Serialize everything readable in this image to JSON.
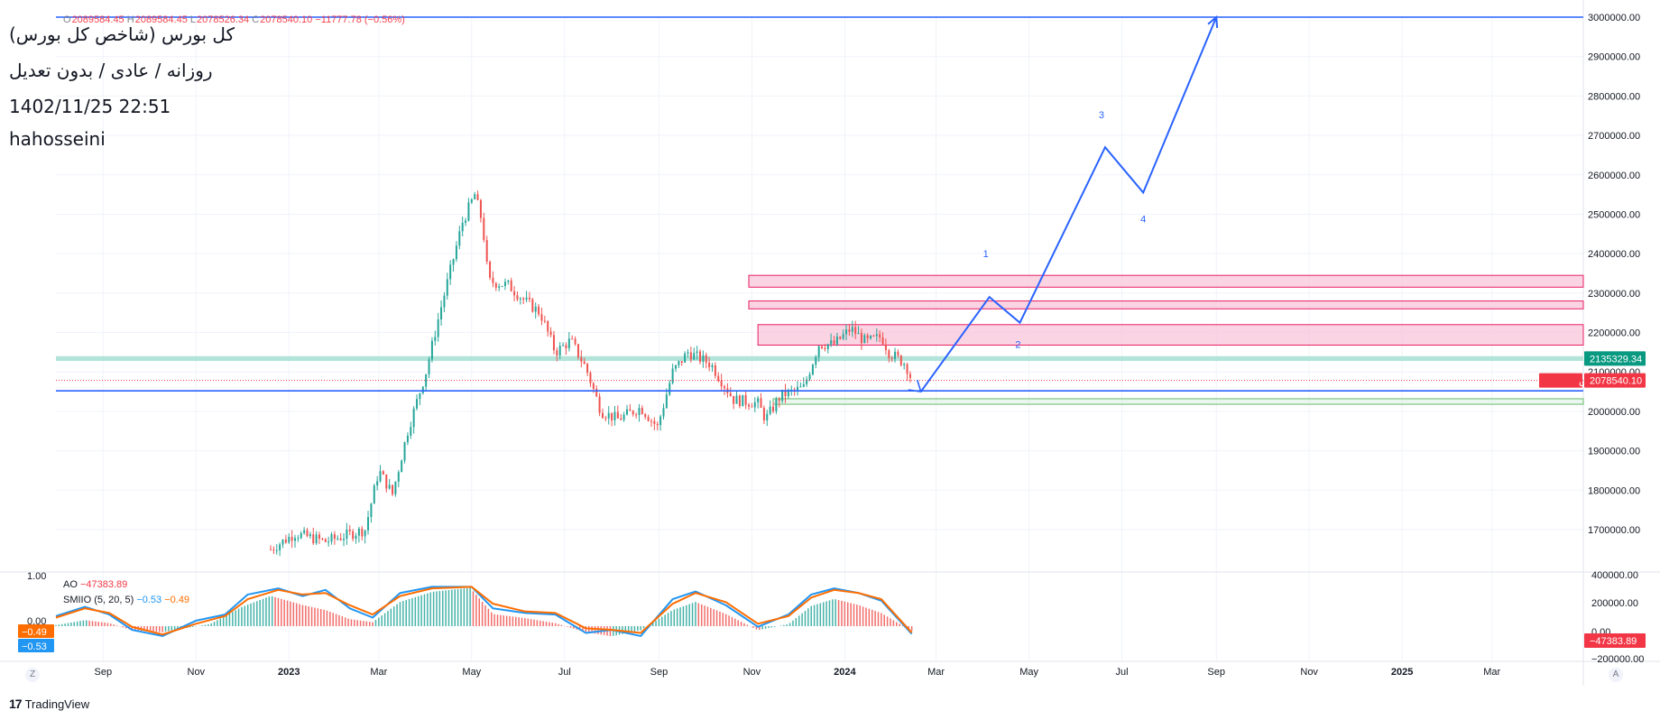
{
  "header": {
    "ticker_title": "کل بورس (شاخص کل بورس)",
    "timeframe": "روزانه / عادی / بدون تعدیل",
    "datetime": "1402/11/25 22:51",
    "author": "hahosseini"
  },
  "ohlc": {
    "open_label": "O",
    "open": "2089584.45",
    "high_label": "H",
    "high": "2089584.45",
    "low_label": "L",
    "low": "2078526.34",
    "close_label": "C",
    "close": "2078540.10",
    "change": "−11777.78 (−0.56%)"
  },
  "colors": {
    "up": "#26a69a",
    "down": "#ef5350",
    "projection": "#2962ff",
    "zone_fill": "#f8c5d8",
    "zone_border": "#e91e63",
    "support_band": "#a5dfd3",
    "ao_up": "#26a69a",
    "ao_down": "#ef5350",
    "smi_blue": "#2196f3",
    "smi_orange": "#ff6d00"
  },
  "price_axis": {
    "ticks": [
      "3000000.00",
      "2900000.00",
      "2800000.00",
      "2700000.00",
      "2600000.00",
      "2500000.00",
      "2400000.00",
      "2300000.00",
      "2200000.00",
      "2100000.00",
      "2000000.00",
      "1900000.00",
      "1800000.00",
      "1700000.00"
    ],
    "badge_support": "2135329.34",
    "badge_symbol": "کل بورس",
    "badge_last": "2078540.10"
  },
  "time_axis": {
    "labels": [
      "Sep",
      "Nov",
      "2023",
      "Mar",
      "May",
      "Jul",
      "Sep",
      "Nov",
      "2024",
      "Mar",
      "May",
      "Jul",
      "Sep",
      "Nov",
      "2025",
      "Mar"
    ]
  },
  "indicator": {
    "ao_label": "AO",
    "ao_value": "−47383.89",
    "smi_label": "SMIIO (5, 20, 5)",
    "smi_blue_value": "−0.53",
    "smi_orange_value": "−0.49",
    "left_scale_top": "1.00",
    "left_scale_zero": "0.00",
    "left_badge_orange": "−0.49",
    "left_badge_blue": "−0.53",
    "right_ticks": [
      "400000.00",
      "200000.00",
      "0.00",
      "−200000.00"
    ],
    "right_badge": "−47383.89"
  },
  "footer": {
    "brand": "TradingView",
    "zoom_left": "Z",
    "auto_right": "A"
  },
  "chart_data": {
    "type": "candlestick",
    "title": "کل بورس (شاخص کل بورس)",
    "y_unit": "index points",
    "ylim": [
      1650000,
      3000000
    ],
    "x_range": [
      "2022-08-01",
      "2025-04-30"
    ],
    "price_path": [
      [
        "2022-12-20",
        1650000
      ],
      [
        "2023-01-05",
        1690000
      ],
      [
        "2023-01-25",
        1670000
      ],
      [
        "2023-02-20",
        1700000
      ],
      [
        "2023-03-01",
        1850000
      ],
      [
        "2023-03-10",
        1790000
      ],
      [
        "2023-03-20",
        1950000
      ],
      [
        "2023-04-01",
        2100000
      ],
      [
        "2023-04-10",
        2250000
      ],
      [
        "2023-04-25",
        2480000
      ],
      [
        "2023-05-03",
        2550000
      ],
      [
        "2023-05-08",
        2480000
      ],
      [
        "2023-05-12",
        2330000
      ],
      [
        "2023-05-25",
        2320000
      ],
      [
        "2023-06-05",
        2280000
      ],
      [
        "2023-06-15",
        2250000
      ],
      [
        "2023-06-25",
        2150000
      ],
      [
        "2023-07-05",
        2180000
      ],
      [
        "2023-07-15",
        2110000
      ],
      [
        "2023-07-25",
        2000000
      ],
      [
        "2023-08-05",
        1980000
      ],
      [
        "2023-08-20",
        2010000
      ],
      [
        "2023-08-31",
        1960000
      ],
      [
        "2023-09-10",
        2100000
      ],
      [
        "2023-09-20",
        2150000
      ],
      [
        "2023-10-05",
        2120000
      ],
      [
        "2023-10-20",
        2030000
      ],
      [
        "2023-11-05",
        2020000
      ],
      [
        "2023-11-10",
        1980000
      ],
      [
        "2023-11-20",
        2040000
      ],
      [
        "2023-12-05",
        2060000
      ],
      [
        "2023-12-15",
        2170000
      ],
      [
        "2023-12-25",
        2170000
      ],
      [
        "2024-01-05",
        2210000
      ],
      [
        "2024-01-15",
        2175000
      ],
      [
        "2024-01-25",
        2190000
      ],
      [
        "2024-01-30",
        2150000
      ],
      [
        "2024-02-10",
        2120000
      ],
      [
        "2024-02-14",
        2078540
      ]
    ],
    "projection_wave": [
      {
        "date": "2024-02-20",
        "value": 2050000,
        "label": ""
      },
      {
        "date": "2024-04-05",
        "value": 2290000,
        "label": "1"
      },
      {
        "date": "2024-04-25",
        "value": 2225000,
        "label": "2"
      },
      {
        "date": "2024-06-20",
        "value": 2670000,
        "label": "3"
      },
      {
        "date": "2024-07-15",
        "value": 2555000,
        "label": "4"
      },
      {
        "date": "2024-09-01",
        "value": 3000000,
        "label": ""
      }
    ],
    "horizontal_lines": [
      {
        "name": "resistance",
        "value": 3000000
      },
      {
        "name": "support",
        "value": 2052000
      },
      {
        "name": "last-price",
        "value": 2078540
      }
    ],
    "support_band": {
      "from": 2128000,
      "to": 2140000
    },
    "green_zone": {
      "from": 2018000,
      "to": 2032000,
      "start": "2023-11-15"
    },
    "resistance_zones": [
      {
        "from": 2315000,
        "to": 2345000,
        "start": "2023-10-30"
      },
      {
        "from": 2260000,
        "to": 2280000,
        "start": "2023-10-30"
      },
      {
        "from": 2168000,
        "to": 2220000,
        "start": "2023-11-05"
      }
    ],
    "ao_ylim": [
      -250000,
      420000
    ],
    "ao_path": [
      [
        "2022-08-01",
        10000
      ],
      [
        "2022-08-20",
        60000
      ],
      [
        "2022-09-05",
        30000
      ],
      [
        "2022-09-20",
        -40000
      ],
      [
        "2022-10-10",
        -60000
      ],
      [
        "2022-10-25",
        -20000
      ],
      [
        "2022-11-10",
        20000
      ],
      [
        "2022-12-01",
        190000
      ],
      [
        "2022-12-20",
        300000
      ],
      [
        "2023-01-10",
        210000
      ],
      [
        "2023-01-25",
        160000
      ],
      [
        "2023-02-10",
        70000
      ],
      [
        "2023-02-25",
        40000
      ],
      [
        "2023-03-15",
        240000
      ],
      [
        "2023-04-05",
        340000
      ],
      [
        "2023-04-30",
        380000
      ],
      [
        "2023-05-15",
        120000
      ],
      [
        "2023-06-05",
        80000
      ],
      [
        "2023-06-25",
        30000
      ],
      [
        "2023-07-15",
        -60000
      ],
      [
        "2023-08-01",
        -100000
      ],
      [
        "2023-08-20",
        -40000
      ],
      [
        "2023-09-10",
        160000
      ],
      [
        "2023-09-25",
        240000
      ],
      [
        "2023-10-15",
        120000
      ],
      [
        "2023-11-05",
        -40000
      ],
      [
        "2023-11-25",
        20000
      ],
      [
        "2023-12-10",
        200000
      ],
      [
        "2023-12-25",
        270000
      ],
      [
        "2024-01-10",
        210000
      ],
      [
        "2024-01-25",
        130000
      ],
      [
        "2024-02-14",
        -47383
      ]
    ],
    "smi_ylim": [
      -1.1,
      1.1
    ],
    "smi_blue": [
      [
        "2022-08-01",
        0.05
      ],
      [
        "2022-08-20",
        0.35
      ],
      [
        "2022-09-05",
        0.1
      ],
      [
        "2022-09-20",
        -0.4
      ],
      [
        "2022-10-10",
        -0.6
      ],
      [
        "2022-11-01",
        -0.1
      ],
      [
        "2022-11-20",
        0.1
      ],
      [
        "2022-12-05",
        0.75
      ],
      [
        "2022-12-25",
        0.95
      ],
      [
        "2023-01-10",
        0.7
      ],
      [
        "2023-01-25",
        0.9
      ],
      [
        "2023-02-10",
        0.3
      ],
      [
        "2023-02-25",
        0.0
      ],
      [
        "2023-03-15",
        0.8
      ],
      [
        "2023-04-05",
        1.0
      ],
      [
        "2023-05-01",
        1.0
      ],
      [
        "2023-05-15",
        0.3
      ],
      [
        "2023-06-05",
        0.15
      ],
      [
        "2023-06-25",
        0.1
      ],
      [
        "2023-07-15",
        -0.5
      ],
      [
        "2023-08-01",
        -0.4
      ],
      [
        "2023-08-20",
        -0.6
      ],
      [
        "2023-09-10",
        0.6
      ],
      [
        "2023-09-25",
        0.85
      ],
      [
        "2023-10-15",
        0.4
      ],
      [
        "2023-11-05",
        -0.3
      ],
      [
        "2023-11-25",
        0.1
      ],
      [
        "2023-12-10",
        0.75
      ],
      [
        "2023-12-25",
        0.95
      ],
      [
        "2024-01-10",
        0.8
      ],
      [
        "2024-01-25",
        0.55
      ],
      [
        "2024-02-14",
        -0.53
      ]
    ],
    "smi_orange": [
      [
        "2022-08-01",
        0.0
      ],
      [
        "2022-08-20",
        0.3
      ],
      [
        "2022-09-05",
        0.15
      ],
      [
        "2022-09-20",
        -0.3
      ],
      [
        "2022-10-10",
        -0.55
      ],
      [
        "2022-11-01",
        -0.2
      ],
      [
        "2022-11-20",
        0.05
      ],
      [
        "2022-12-05",
        0.6
      ],
      [
        "2022-12-25",
        0.9
      ],
      [
        "2023-01-10",
        0.75
      ],
      [
        "2023-01-25",
        0.8
      ],
      [
        "2023-02-10",
        0.4
      ],
      [
        "2023-02-25",
        0.1
      ],
      [
        "2023-03-15",
        0.7
      ],
      [
        "2023-04-05",
        0.95
      ],
      [
        "2023-05-01",
        1.0
      ],
      [
        "2023-05-15",
        0.45
      ],
      [
        "2023-06-05",
        0.2
      ],
      [
        "2023-06-25",
        0.15
      ],
      [
        "2023-07-15",
        -0.35
      ],
      [
        "2023-08-01",
        -0.4
      ],
      [
        "2023-08-20",
        -0.5
      ],
      [
        "2023-09-10",
        0.45
      ],
      [
        "2023-09-25",
        0.8
      ],
      [
        "2023-10-15",
        0.5
      ],
      [
        "2023-11-05",
        -0.2
      ],
      [
        "2023-11-25",
        0.05
      ],
      [
        "2023-12-10",
        0.65
      ],
      [
        "2023-12-25",
        0.9
      ],
      [
        "2024-01-10",
        0.8
      ],
      [
        "2024-01-25",
        0.6
      ],
      [
        "2024-02-14",
        -0.49
      ]
    ],
    "x_ticks": [
      [
        "2022-09-01",
        "Sep"
      ],
      [
        "2022-11-01",
        "Nov"
      ],
      [
        "2023-01-01",
        "2023"
      ],
      [
        "2023-03-01",
        "Mar"
      ],
      [
        "2023-05-01",
        "May"
      ],
      [
        "2023-07-01",
        "Jul"
      ],
      [
        "2023-09-01",
        "Sep"
      ],
      [
        "2023-11-01",
        "Nov"
      ],
      [
        "2024-01-01",
        "2024"
      ],
      [
        "2024-03-01",
        "Mar"
      ],
      [
        "2024-05-01",
        "May"
      ],
      [
        "2024-07-01",
        "Jul"
      ],
      [
        "2024-09-01",
        "Sep"
      ],
      [
        "2024-11-01",
        "Nov"
      ],
      [
        "2025-01-01",
        "2025"
      ],
      [
        "2025-03-01",
        "Mar"
      ]
    ]
  }
}
